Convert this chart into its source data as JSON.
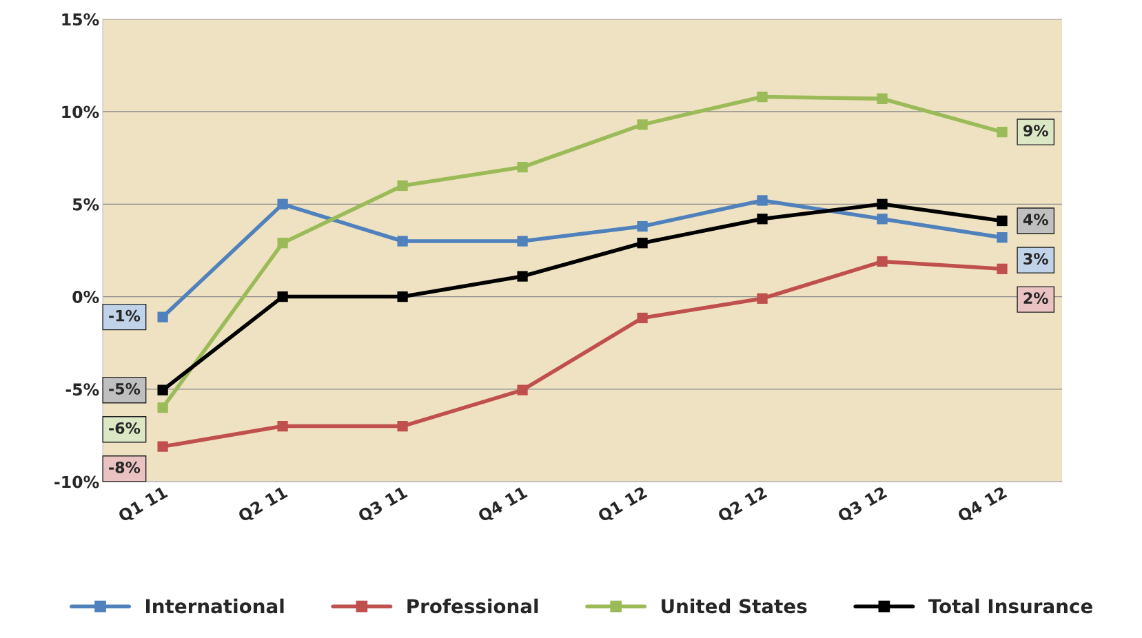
{
  "chart_data": {
    "type": "line",
    "categories": [
      "Q1 11",
      "Q2 11",
      "Q3 11",
      "Q4 11",
      "Q1 12",
      "Q2 12",
      "Q3 12",
      "Q4 12"
    ],
    "series": [
      {
        "name": "International",
        "color": "#4f81bd",
        "values": [
          -1.1,
          5.0,
          3.0,
          3.0,
          3.8,
          5.2,
          4.2,
          3.2
        ],
        "value_labels": [
          "-1%",
          null,
          null,
          null,
          null,
          null,
          null,
          "3%"
        ]
      },
      {
        "name": "Professional",
        "color": "#c0504d",
        "values": [
          -8.1,
          -7.0,
          -7.0,
          -5.05,
          -1.15,
          -0.1,
          1.9,
          1.5
        ],
        "value_labels": [
          "-8%",
          null,
          null,
          null,
          null,
          null,
          null,
          "2%"
        ]
      },
      {
        "name": "United States",
        "color": "#9bbb59",
        "values": [
          -6.0,
          2.9,
          6.0,
          7.0,
          9.3,
          10.8,
          10.7,
          8.9
        ],
        "value_labels": [
          "-6%",
          null,
          null,
          null,
          null,
          null,
          null,
          "9%"
        ]
      },
      {
        "name": "Total Insurance",
        "color": "#000000",
        "values": [
          -5.05,
          0,
          0,
          1.1,
          2.9,
          4.2,
          5.0,
          4.1
        ],
        "value_labels": [
          "-5%",
          null,
          null,
          null,
          null,
          null,
          null,
          "4%"
        ]
      }
    ],
    "ylim": [
      -10,
      15
    ],
    "yticks": [
      {
        "value": -10,
        "label": "-10%"
      },
      {
        "value": -5,
        "label": "-5%"
      },
      {
        "value": 0,
        "label": "0%"
      },
      {
        "value": 5,
        "label": "5%"
      },
      {
        "value": 10,
        "label": "10%"
      },
      {
        "value": 15,
        "label": "15%"
      }
    ],
    "grid": "y",
    "legend": "bottom",
    "marker": "square",
    "line_style": "solid"
  }
}
